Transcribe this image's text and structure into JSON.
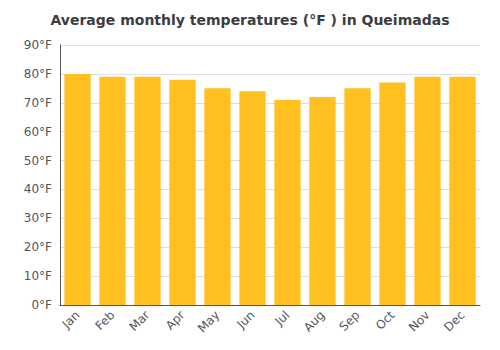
{
  "chart_data": {
    "type": "bar",
    "title": "Average monthly temperatures (°F ) in Queimadas",
    "categories": [
      "Jan",
      "Feb",
      "Mar",
      "Apr",
      "May",
      "Jun",
      "Jul",
      "Aug",
      "Sep",
      "Oct",
      "Nov",
      "Dec"
    ],
    "values": [
      80,
      79,
      79,
      78,
      75,
      74,
      71,
      72,
      75,
      77,
      79,
      79
    ],
    "color": "#FFC020",
    "ylim": [
      0,
      90
    ],
    "yticks": [
      {
        "value": 0,
        "label": "0°F"
      },
      {
        "value": 10,
        "label": "10°F"
      },
      {
        "value": 20,
        "label": "20°F"
      },
      {
        "value": 30,
        "label": "30°F"
      },
      {
        "value": 40,
        "label": "40°F"
      },
      {
        "value": 50,
        "label": "50°F"
      },
      {
        "value": 60,
        "label": "60°F"
      },
      {
        "value": 70,
        "label": "70°F"
      },
      {
        "value": 80,
        "label": "80°F"
      },
      {
        "value": 90,
        "label": "90°F"
      }
    ],
    "grid": true
  }
}
